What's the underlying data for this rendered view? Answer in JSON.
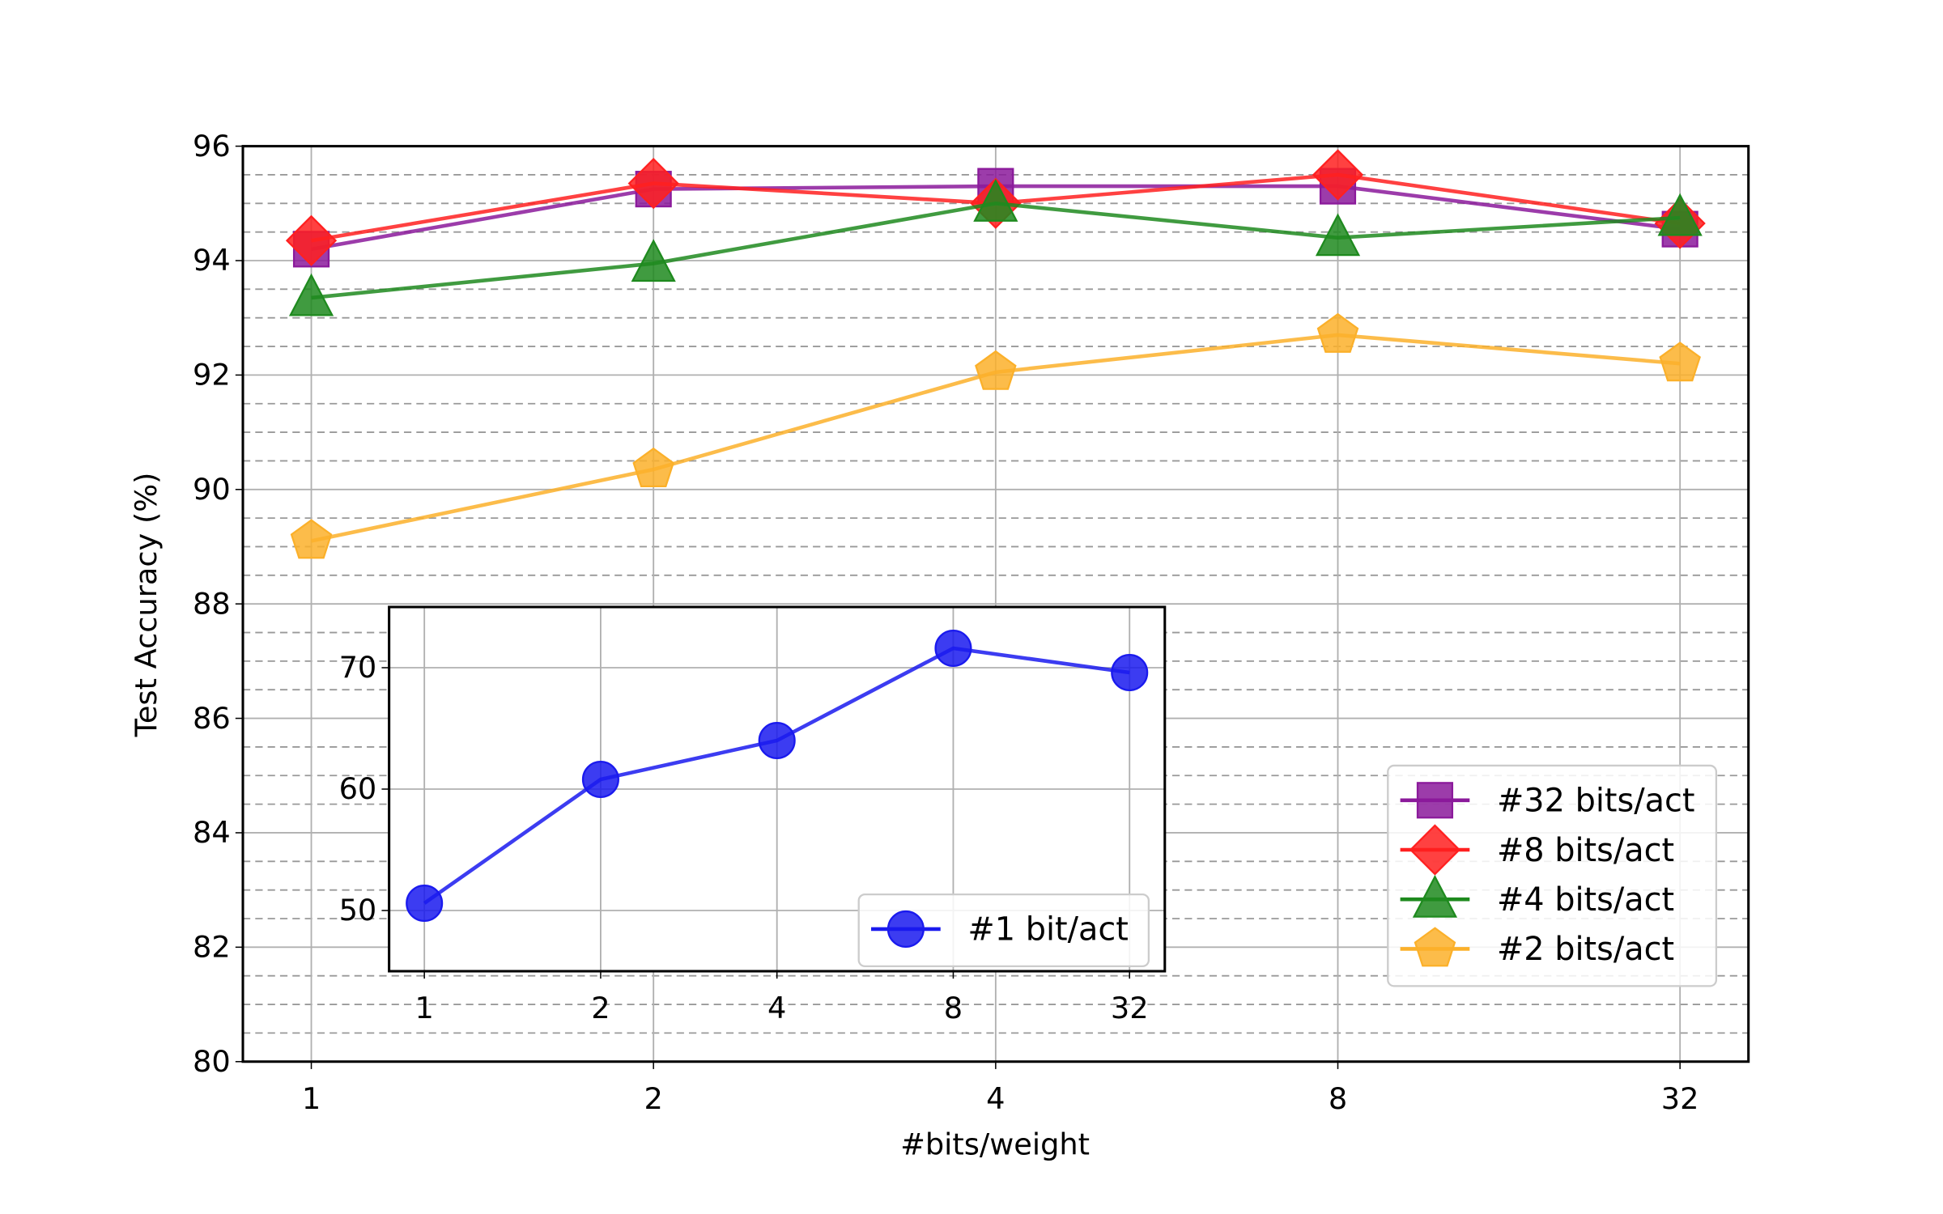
{
  "chart_data": [
    {
      "type": "line",
      "title": "",
      "xlabel": "#bits/weight",
      "ylabel": "Test Accuracy (%)",
      "categories": [
        "1",
        "2",
        "4",
        "8",
        "32"
      ],
      "ylim": [
        80,
        96
      ],
      "yticks": [
        "80",
        "82",
        "84",
        "86",
        "88",
        "90",
        "92",
        "94",
        "96"
      ],
      "grid": "major solid, minor dashed every 0.5",
      "legend_placement": "lower-right",
      "series": [
        {
          "name": "#32 bits/act",
          "color": "#8b1a9b",
          "marker": "square",
          "values": [
            94.2,
            95.25,
            95.3,
            95.3,
            94.55
          ]
        },
        {
          "name": "#8 bits/act",
          "color": "#ff2020",
          "marker": "diamond",
          "values": [
            94.35,
            95.35,
            95.0,
            95.5,
            94.65
          ]
        },
        {
          "name": "#4 bits/act",
          "color": "#1e8a1e",
          "marker": "triangle",
          "values": [
            93.35,
            93.95,
            95.0,
            94.4,
            94.75
          ]
        },
        {
          "name": "#2 bits/act",
          "color": "#fbb02a",
          "marker": "pentagon",
          "values": [
            89.1,
            90.35,
            92.05,
            92.7,
            92.2
          ]
        }
      ]
    },
    {
      "type": "line",
      "title": "",
      "xlabel": "",
      "ylabel": "",
      "categories": [
        "1",
        "2",
        "4",
        "8",
        "32"
      ],
      "ylim": [
        45,
        75
      ],
      "yticks": [
        "50",
        "60",
        "70"
      ],
      "grid": "on",
      "legend_placement": "lower-right",
      "series": [
        {
          "name": "#1 bit/act",
          "color": "#1a1aee",
          "marker": "circle",
          "values": [
            50.6,
            60.8,
            64.0,
            71.6,
            69.6
          ]
        }
      ]
    }
  ]
}
